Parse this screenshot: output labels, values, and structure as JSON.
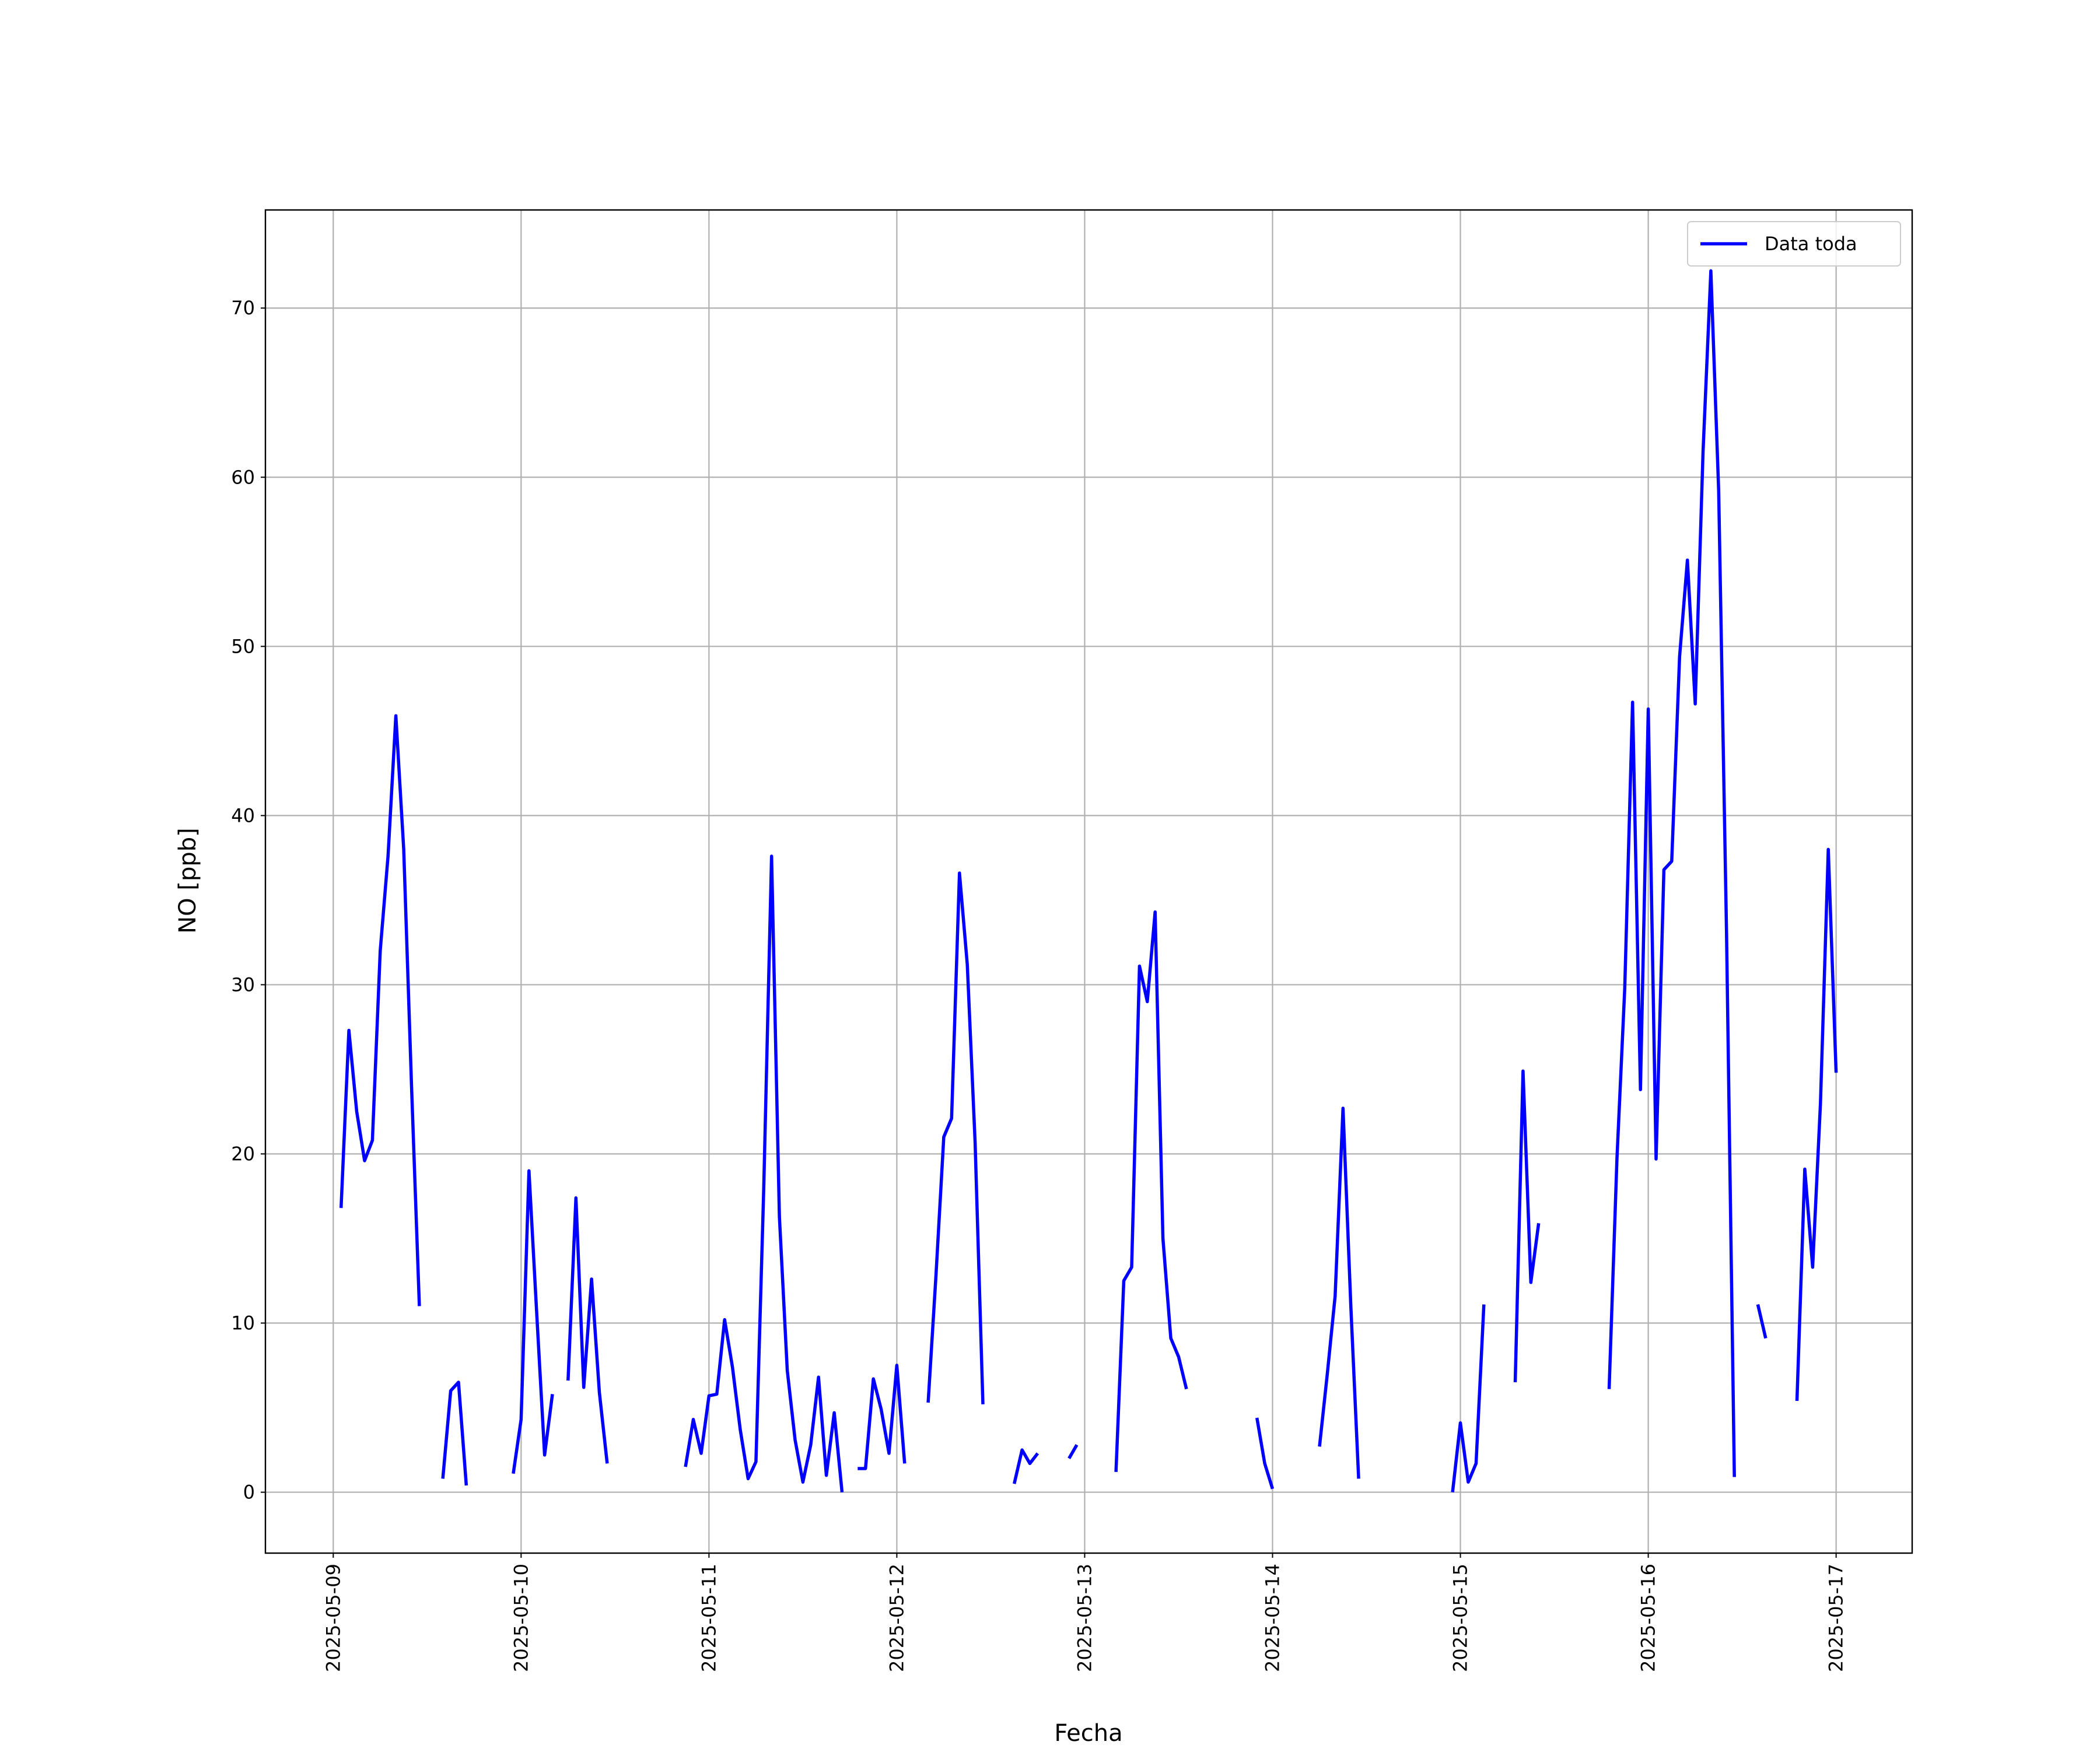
{
  "chart_data": {
    "type": "line",
    "xlabel": "Fecha",
    "ylabel": "NO [ppb]",
    "x": [
      "2025-05-09 01:00",
      "2025-05-09 02:00",
      "2025-05-09 03:00",
      "2025-05-09 04:00",
      "2025-05-09 05:00",
      "2025-05-09 06:00",
      "2025-05-09 07:00",
      "2025-05-09 08:00",
      "2025-05-09 09:00",
      "2025-05-09 10:00",
      "2025-05-09 11:00",
      "2025-05-09 12:00",
      "2025-05-09 13:00",
      "2025-05-09 14:00",
      "2025-05-09 15:00",
      "2025-05-09 16:00",
      "2025-05-09 17:00",
      "2025-05-09 18:00",
      "2025-05-09 19:00",
      "2025-05-09 20:00",
      "2025-05-09 21:00",
      "2025-05-09 22:00",
      "2025-05-09 23:00",
      "2025-05-10 00:00",
      "2025-05-10 01:00",
      "2025-05-10 02:00",
      "2025-05-10 03:00",
      "2025-05-10 04:00",
      "2025-05-10 05:00",
      "2025-05-10 06:00",
      "2025-05-10 07:00",
      "2025-05-10 08:00",
      "2025-05-10 09:00",
      "2025-05-10 10:00",
      "2025-05-10 11:00",
      "2025-05-10 12:00",
      "2025-05-10 13:00",
      "2025-05-10 14:00",
      "2025-05-10 15:00",
      "2025-05-10 16:00",
      "2025-05-10 17:00",
      "2025-05-10 18:00",
      "2025-05-10 19:00",
      "2025-05-10 20:00",
      "2025-05-10 21:00",
      "2025-05-10 22:00",
      "2025-05-10 23:00",
      "2025-05-11 00:00",
      "2025-05-11 01:00",
      "2025-05-11 02:00",
      "2025-05-11 03:00",
      "2025-05-11 04:00",
      "2025-05-11 05:00",
      "2025-05-11 06:00",
      "2025-05-11 07:00",
      "2025-05-11 08:00",
      "2025-05-11 09:00",
      "2025-05-11 10:00",
      "2025-05-11 11:00",
      "2025-05-11 12:00",
      "2025-05-11 13:00",
      "2025-05-11 14:00",
      "2025-05-11 15:00",
      "2025-05-11 16:00",
      "2025-05-11 17:00",
      "2025-05-11 18:00",
      "2025-05-11 19:00",
      "2025-05-11 20:00",
      "2025-05-11 21:00",
      "2025-05-11 22:00",
      "2025-05-11 23:00",
      "2025-05-12 00:00",
      "2025-05-12 01:00",
      "2025-05-12 02:00",
      "2025-05-12 03:00",
      "2025-05-12 04:00",
      "2025-05-12 05:00",
      "2025-05-12 06:00",
      "2025-05-12 07:00",
      "2025-05-12 08:00",
      "2025-05-12 09:00",
      "2025-05-12 10:00",
      "2025-05-12 11:00",
      "2025-05-12 12:00",
      "2025-05-12 13:00",
      "2025-05-12 14:00",
      "2025-05-12 15:00",
      "2025-05-12 16:00",
      "2025-05-12 17:00",
      "2025-05-12 18:00",
      "2025-05-12 19:00",
      "2025-05-12 20:00",
      "2025-05-12 21:00",
      "2025-05-12 22:00",
      "2025-05-12 23:00",
      "2025-05-13 00:00",
      "2025-05-13 01:00",
      "2025-05-13 02:00",
      "2025-05-13 03:00",
      "2025-05-13 04:00",
      "2025-05-13 05:00",
      "2025-05-13 06:00",
      "2025-05-13 07:00",
      "2025-05-13 08:00",
      "2025-05-13 09:00",
      "2025-05-13 10:00",
      "2025-05-13 11:00",
      "2025-05-13 12:00",
      "2025-05-13 13:00",
      "2025-05-13 14:00",
      "2025-05-13 15:00",
      "2025-05-13 16:00",
      "2025-05-13 17:00",
      "2025-05-13 18:00",
      "2025-05-13 19:00",
      "2025-05-13 20:00",
      "2025-05-13 21:00",
      "2025-05-13 22:00",
      "2025-05-13 23:00",
      "2025-05-14 00:00",
      "2025-05-14 01:00",
      "2025-05-14 02:00",
      "2025-05-14 03:00",
      "2025-05-14 04:00",
      "2025-05-14 05:00",
      "2025-05-14 06:00",
      "2025-05-14 07:00",
      "2025-05-14 08:00",
      "2025-05-14 09:00",
      "2025-05-14 10:00",
      "2025-05-14 11:00",
      "2025-05-14 12:00",
      "2025-05-14 13:00",
      "2025-05-14 14:00",
      "2025-05-14 15:00",
      "2025-05-14 16:00",
      "2025-05-14 17:00",
      "2025-05-14 18:00",
      "2025-05-14 19:00",
      "2025-05-14 20:00",
      "2025-05-14 21:00",
      "2025-05-14 22:00",
      "2025-05-14 23:00",
      "2025-05-15 00:00",
      "2025-05-15 01:00",
      "2025-05-15 02:00",
      "2025-05-15 03:00",
      "2025-05-15 04:00",
      "2025-05-15 05:00",
      "2025-05-15 06:00",
      "2025-05-15 07:00",
      "2025-05-15 08:00",
      "2025-05-15 09:00",
      "2025-05-15 10:00",
      "2025-05-15 11:00",
      "2025-05-15 12:00",
      "2025-05-15 13:00",
      "2025-05-15 14:00",
      "2025-05-15 15:00",
      "2025-05-15 16:00",
      "2025-05-15 17:00",
      "2025-05-15 18:00",
      "2025-05-15 19:00",
      "2025-05-15 20:00",
      "2025-05-15 21:00",
      "2025-05-15 22:00",
      "2025-05-15 23:00",
      "2025-05-16 00:00",
      "2025-05-16 01:00",
      "2025-05-16 02:00",
      "2025-05-16 03:00",
      "2025-05-16 04:00",
      "2025-05-16 05:00",
      "2025-05-16 06:00",
      "2025-05-16 07:00",
      "2025-05-16 08:00",
      "2025-05-16 09:00",
      "2025-05-16 10:00",
      "2025-05-16 11:00",
      "2025-05-16 12:00",
      "2025-05-16 13:00",
      "2025-05-16 14:00",
      "2025-05-16 15:00",
      "2025-05-16 16:00",
      "2025-05-16 17:00",
      "2025-05-16 18:00",
      "2025-05-16 19:00",
      "2025-05-16 20:00",
      "2025-05-16 21:00",
      "2025-05-16 22:00",
      "2025-05-16 23:00",
      "2025-05-17 00:00"
    ],
    "series": [
      {
        "name": "Data toda",
        "color": "#0000ff",
        "values": [
          16.8,
          27.3,
          22.5,
          19.6,
          20.8,
          32,
          37.6,
          45.9,
          38,
          24,
          11,
          null,
          null,
          0.8,
          6,
          6.5,
          0.4,
          null,
          null,
          null,
          null,
          null,
          1.1,
          4.3,
          19,
          10.5,
          2.2,
          5.8,
          null,
          6.6,
          17.4,
          6.2,
          12.6,
          5.9,
          1.7,
          null,
          null,
          null,
          null,
          null,
          null,
          null,
          null,
          null,
          1.5,
          4.3,
          2.3,
          5.7,
          5.8,
          10.2,
          7.4,
          3.7,
          0.8,
          1.8,
          18,
          37.6,
          16.3,
          7.2,
          3.1,
          0.6,
          2.8,
          6.8,
          1,
          4.7,
          0,
          null,
          1.4,
          1.4,
          6.7,
          4.9,
          2.3,
          7.5,
          1.7,
          null,
          null,
          5.3,
          12.8,
          21,
          22.1,
          36.6,
          31.2,
          20.7,
          5.2,
          null,
          null,
          null,
          0.5,
          2.5,
          1.7,
          2.3,
          null,
          null,
          null,
          2.0,
          2.8,
          null,
          null,
          null,
          null,
          1.2,
          12.5,
          13.3,
          31.1,
          29,
          34.3,
          15,
          9.1,
          8,
          6.1,
          null,
          null,
          null,
          null,
          null,
          null,
          null,
          null,
          4.4,
          1.7,
          0.2,
          null,
          null,
          null,
          null,
          null,
          2.7,
          7,
          11.6,
          22.7,
          11,
          0.8,
          null,
          null,
          null,
          null,
          null,
          null,
          null,
          null,
          null,
          null,
          null,
          0,
          4.1,
          0.6,
          1.7,
          11.1,
          null,
          null,
          null,
          6.5,
          24.9,
          12.4,
          15.9,
          null,
          null,
          null,
          null,
          null,
          null,
          null,
          null,
          6.1,
          19.7,
          29.8,
          46.7,
          23.8,
          46.3,
          19.7,
          36.8,
          37.3,
          49.4,
          55.1,
          46.6,
          61.5,
          72.2,
          59.2,
          33,
          0.9,
          null,
          null,
          11.1,
          9.1,
          null,
          null,
          null,
          5.4,
          19.1,
          13.3,
          23,
          38,
          24.8
        ]
      }
    ],
    "xlim": [
      "2025-05-08 15:20",
      "2025-05-17 09:43"
    ],
    "xticks": [
      "2025-05-09",
      "2025-05-10",
      "2025-05-11",
      "2025-05-12",
      "2025-05-13",
      "2025-05-14",
      "2025-05-15",
      "2025-05-16",
      "2025-05-17"
    ],
    "ylim": [
      -3.6,
      75.8
    ],
    "yticks": [
      0,
      10,
      20,
      30,
      40,
      50,
      60,
      70
    ],
    "grid": true,
    "legend": "upper right"
  }
}
